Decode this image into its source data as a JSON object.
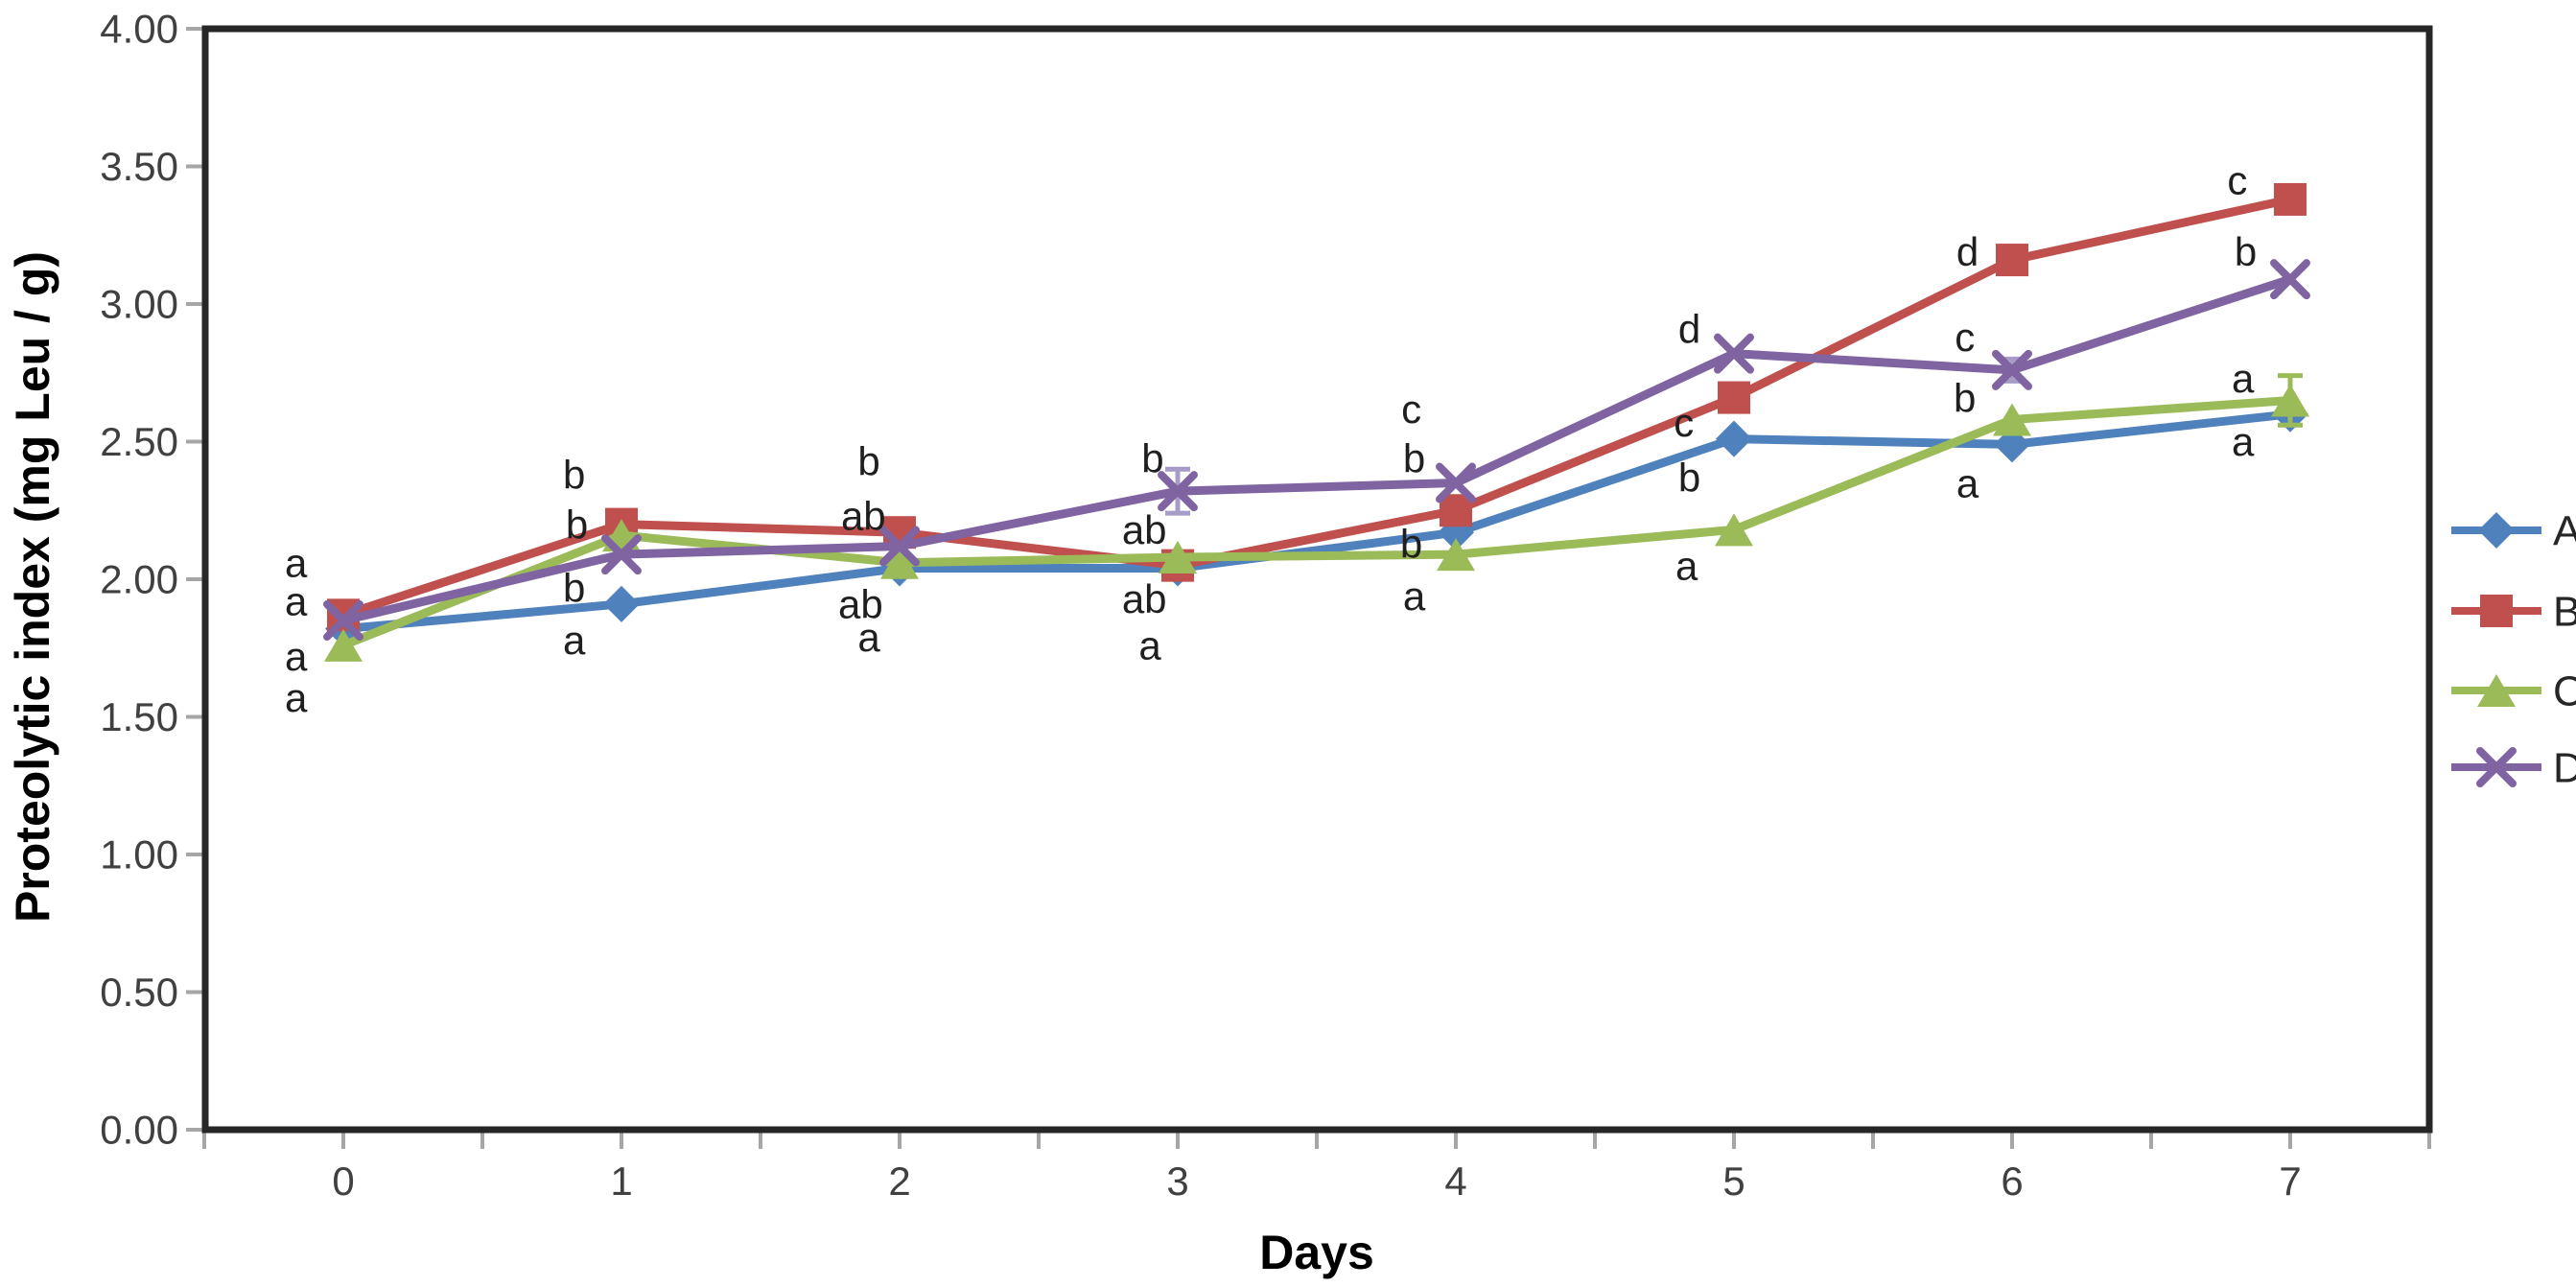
{
  "figure": {
    "background": "#ffffff",
    "axis_color": "#262626",
    "tick_color": "#a6a6a6",
    "tick_label_color": "#404040",
    "annotation_color": "#1f1f1f",
    "legend_label_color": "#262626"
  },
  "chart_data": {
    "type": "line",
    "title": "",
    "xlabel": "Days",
    "ylabel": "Proteolytic index (mg Leu / g)",
    "x": [
      0,
      1,
      2,
      3,
      4,
      5,
      6,
      7
    ],
    "ylim": [
      0,
      4
    ],
    "ytick_step": 0.5,
    "ytick_labels": [
      "0.00",
      "0.50",
      "1.00",
      "1.50",
      "2.00",
      "2.50",
      "3.00",
      "3.50",
      "4.00"
    ],
    "grid": false,
    "legend_position": "right",
    "series": [
      {
        "name": "A",
        "color": "#4F81BD",
        "marker": "diamond",
        "values": [
          1.82,
          1.91,
          2.04,
          2.04,
          2.17,
          2.51,
          2.49,
          2.6
        ],
        "errors": [
          null,
          null,
          null,
          null,
          null,
          null,
          null,
          null
        ],
        "error_color": "#4F81BD"
      },
      {
        "name": "B",
        "color": "#C0504D",
        "marker": "square",
        "values": [
          1.87,
          2.2,
          2.17,
          2.05,
          2.25,
          2.66,
          3.16,
          3.38
        ],
        "errors": [
          null,
          null,
          null,
          null,
          null,
          null,
          null,
          null
        ],
        "error_color": "#C0504D"
      },
      {
        "name": "C",
        "color": "#9BBB59",
        "marker": "triangle",
        "values": [
          1.76,
          2.16,
          2.06,
          2.08,
          2.09,
          2.18,
          2.58,
          2.65
        ],
        "errors": [
          null,
          null,
          null,
          null,
          null,
          null,
          null,
          0.09
        ],
        "error_color": "#9BBB59"
      },
      {
        "name": "D",
        "color": "#8064A2",
        "marker": "x",
        "values": [
          1.85,
          2.09,
          2.12,
          2.32,
          2.35,
          2.82,
          2.76,
          3.09
        ],
        "errors": [
          null,
          null,
          null,
          0.08,
          null,
          null,
          0.04,
          null
        ],
        "error_color": "#A79CC8"
      }
    ],
    "annotations": [
      {
        "text": "a",
        "x": -0.17,
        "y": 2.06
      },
      {
        "text": "a",
        "x": -0.17,
        "y": 1.92
      },
      {
        "text": "a",
        "x": -0.17,
        "y": 1.72
      },
      {
        "text": "a",
        "x": -0.17,
        "y": 1.57
      },
      {
        "text": "b",
        "x": 0.83,
        "y": 2.38
      },
      {
        "text": "b",
        "x": 0.84,
        "y": 2.2
      },
      {
        "text": "b",
        "x": 0.83,
        "y": 1.97
      },
      {
        "text": "a",
        "x": 0.83,
        "y": 1.78
      },
      {
        "text": "b",
        "x": 1.89,
        "y": 2.43
      },
      {
        "text": "ab",
        "x": 1.87,
        "y": 2.23
      },
      {
        "text": "ab",
        "x": 1.86,
        "y": 1.91
      },
      {
        "text": "a",
        "x": 1.89,
        "y": 1.79
      },
      {
        "text": "b",
        "x": 2.91,
        "y": 2.44
      },
      {
        "text": "ab",
        "x": 2.88,
        "y": 2.18
      },
      {
        "text": "ab",
        "x": 2.88,
        "y": 1.93
      },
      {
        "text": "a",
        "x": 2.9,
        "y": 1.76
      },
      {
        "text": "c",
        "x": 3.84,
        "y": 2.62
      },
      {
        "text": "b",
        "x": 3.85,
        "y": 2.44
      },
      {
        "text": "b",
        "x": 3.84,
        "y": 2.13
      },
      {
        "text": "a",
        "x": 3.85,
        "y": 1.94
      },
      {
        "text": "d",
        "x": 4.84,
        "y": 2.91
      },
      {
        "text": "c",
        "x": 4.82,
        "y": 2.57
      },
      {
        "text": "b",
        "x": 4.84,
        "y": 2.37
      },
      {
        "text": "a",
        "x": 4.83,
        "y": 2.05
      },
      {
        "text": "d",
        "x": 5.84,
        "y": 3.19
      },
      {
        "text": "c",
        "x": 5.83,
        "y": 2.88
      },
      {
        "text": "b",
        "x": 5.83,
        "y": 2.66
      },
      {
        "text": "a",
        "x": 5.84,
        "y": 2.35
      },
      {
        "text": "c",
        "x": 6.81,
        "y": 3.45
      },
      {
        "text": "b",
        "x": 6.84,
        "y": 3.19
      },
      {
        "text": "a",
        "x": 6.83,
        "y": 2.73
      },
      {
        "text": "a",
        "x": 6.83,
        "y": 2.5
      }
    ]
  }
}
